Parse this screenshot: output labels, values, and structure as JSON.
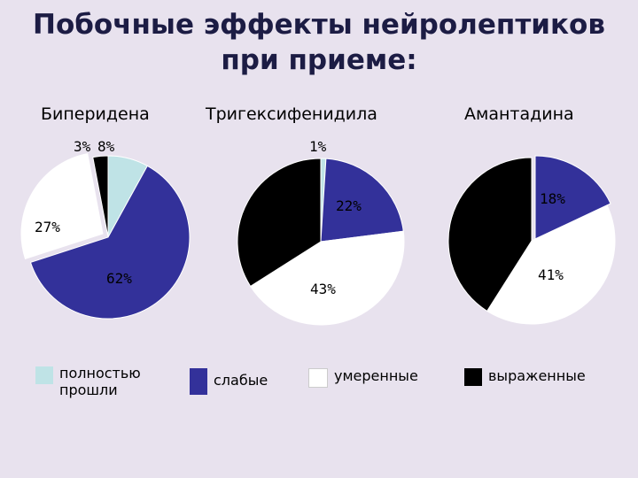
{
  "title_line1": "Побочные эффекты нейролептиков",
  "title_line2": "при приеме:",
  "colors": {
    "полностью прошли": "#bfe3e6",
    "слабые": "#33319a",
    "умеренные": "#ffffff",
    "выраженные": "#000000"
  },
  "legend": [
    {
      "label_line1": "полностью",
      "label_line2": "прошли",
      "color_key": "полностью прошли"
    },
    {
      "label_line1": "слабые",
      "color_key": "слабые"
    },
    {
      "label_line1": "умеренные",
      "color_key": "умеренные"
    },
    {
      "label_line1": "выраженные",
      "color_key": "выраженные"
    }
  ],
  "chart_data": [
    {
      "type": "pie",
      "title": "Биперидена",
      "slices": [
        {
          "label": "полностью прошли",
          "value": 8,
          "text": "8%"
        },
        {
          "label": "слабые",
          "value": 62,
          "text": "62%"
        },
        {
          "label": "умеренные",
          "value": 27,
          "text": "27%"
        },
        {
          "label": "выраженные",
          "value": 3,
          "text": "3%"
        }
      ]
    },
    {
      "type": "pie",
      "title": "Тригексифенидила",
      "slices": [
        {
          "label": "полностью прошли",
          "value": 1,
          "text": "1%"
        },
        {
          "label": "слабые",
          "value": 22,
          "text": "22%"
        },
        {
          "label": "умеренные",
          "value": 43,
          "text": "43%"
        },
        {
          "label": "выраженные",
          "value": 34,
          "text": "34%"
        }
      ]
    },
    {
      "type": "pie",
      "title": "Амантадина",
      "slices": [
        {
          "label": "слабые",
          "value": 18,
          "text": "18%"
        },
        {
          "label": "умеренные",
          "value": 41,
          "text": "41%"
        },
        {
          "label": "выраженные",
          "value": 41,
          "text": "41%"
        }
      ]
    }
  ]
}
